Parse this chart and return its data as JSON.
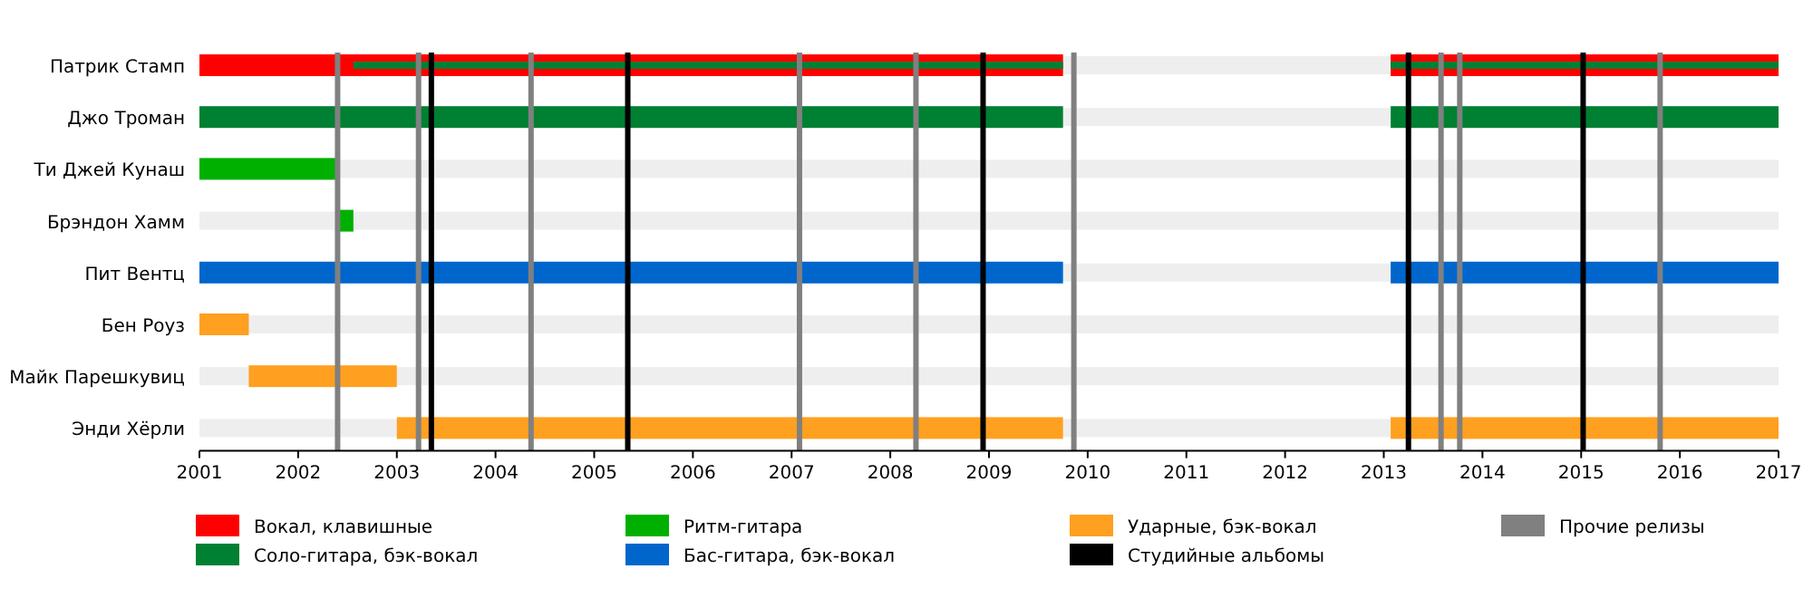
{
  "chart_data": {
    "type": "bar",
    "orientation": "horizontal",
    "categories": [
      "Патрик Стамп",
      "Джо Троман",
      "Ти Джей Кунаш",
      "Брэндон Хамм",
      "Пит Вентц",
      "Бен Роуз",
      "Майк Парешкувиц",
      "Энди Хёрли"
    ],
    "series": [
      {
        "name": "Вокал, клавишные",
        "color": "#ff0000",
        "base": [
          2001,
          null,
          null,
          null,
          null,
          null,
          null,
          null
        ],
        "values": [
          8.75,
          null,
          null,
          null,
          null,
          null,
          null,
          null
        ]
      },
      {
        "color": "#ff0000",
        "base": [
          2013.07,
          null,
          null,
          null,
          null,
          null,
          null,
          null
        ],
        "values": [
          3.93,
          null,
          null,
          null,
          null,
          null,
          null,
          null
        ]
      },
      {
        "name": "Соло-гитара, бэк-вокал",
        "color": "#008033",
        "base": [
          2002.56,
          2001,
          null,
          null,
          null,
          null,
          null,
          null
        ],
        "values": [
          7.19,
          8.75,
          null,
          null,
          null,
          null,
          null,
          null
        ]
      },
      {
        "color": "#008033",
        "base": [
          2013.07,
          2013.07,
          null,
          null,
          null,
          null,
          null,
          null
        ],
        "values": [
          3.93,
          3.93,
          null,
          null,
          null,
          null,
          null,
          null
        ]
      },
      {
        "name": "Ритм-гитара",
        "color": "#00b000",
        "base": [
          null,
          null,
          2001,
          2002.4,
          null,
          null,
          null,
          null
        ],
        "values": [
          null,
          null,
          1.4,
          0.16,
          null,
          null,
          null,
          null
        ]
      },
      {
        "name": "Бас-гитара, бэк-вокал",
        "color": "#0066cc",
        "base": [
          null,
          null,
          null,
          null,
          2001,
          null,
          null,
          null
        ],
        "values": [
          null,
          null,
          null,
          null,
          8.75,
          null,
          null,
          null
        ]
      },
      {
        "color": "#0066cc",
        "base": [
          null,
          null,
          null,
          null,
          2013.07,
          null,
          null,
          null
        ],
        "values": [
          null,
          null,
          null,
          null,
          3.93,
          null,
          null,
          null
        ]
      },
      {
        "name": "Ударные, бэк-вокал",
        "color": "#ffa020",
        "base": [
          null,
          null,
          null,
          null,
          null,
          2001,
          2001.5,
          2003
        ],
        "values": [
          null,
          null,
          null,
          null,
          null,
          0.5,
          1.5,
          6.75
        ]
      },
      {
        "color": "#ffa020",
        "base": [
          null,
          null,
          null,
          null,
          null,
          null,
          null,
          2013.07
        ],
        "values": [
          null,
          null,
          null,
          null,
          null,
          null,
          null,
          3.93
        ]
      }
    ],
    "xlim": [
      2001,
      2017
    ],
    "xticks": [
      2001,
      2002,
      2003,
      2004,
      2005,
      2006,
      2007,
      2008,
      2009,
      2010,
      2011,
      2012,
      2013,
      2014,
      2015,
      2016,
      2017
    ],
    "ref_lines": [
      {
        "axis": "x",
        "value": 2003.35,
        "color": "#000000",
        "label": "Студийные альбомы"
      },
      {
        "axis": "x",
        "value": 2005.34,
        "color": "#000000"
      },
      {
        "axis": "x",
        "value": 2008.94,
        "color": "#000000"
      },
      {
        "axis": "x",
        "value": 2013.25,
        "color": "#000000"
      },
      {
        "axis": "x",
        "value": 2015.02,
        "color": "#000000"
      },
      {
        "axis": "x",
        "value": 2002.4,
        "color": "#808080",
        "label": "Прочие релизы"
      },
      {
        "axis": "x",
        "value": 2003.22,
        "color": "#808080"
      },
      {
        "axis": "x",
        "value": 2004.36,
        "color": "#808080"
      },
      {
        "axis": "x",
        "value": 2007.08,
        "color": "#808080"
      },
      {
        "axis": "x",
        "value": 2008.26,
        "color": "#808080"
      },
      {
        "axis": "x",
        "value": 2009.86,
        "color": "#808080"
      },
      {
        "axis": "x",
        "value": 2013.58,
        "color": "#808080"
      },
      {
        "axis": "x",
        "value": 2013.77,
        "color": "#808080"
      },
      {
        "axis": "x",
        "value": 2015.8,
        "color": "#808080"
      }
    ],
    "legend": "bottom"
  }
}
